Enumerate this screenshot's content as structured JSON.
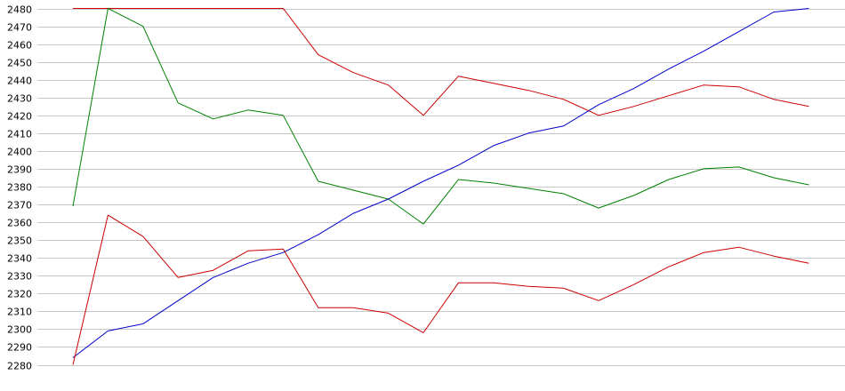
{
  "chart_data": {
    "type": "line",
    "title": "",
    "xlabel": "",
    "ylabel": "",
    "ylim": [
      2280,
      2480
    ],
    "yticks": [
      2280,
      2290,
      2300,
      2310,
      2320,
      2330,
      2340,
      2350,
      2360,
      2370,
      2380,
      2390,
      2400,
      2410,
      2420,
      2430,
      2440,
      2450,
      2460,
      2470,
      2480
    ],
    "x": [
      1,
      2,
      3,
      4,
      5,
      6,
      7,
      8,
      9,
      10,
      11,
      12,
      13,
      14,
      15,
      16,
      17,
      18,
      19,
      20,
      21,
      22
    ],
    "grid": true,
    "legend": "none",
    "series": [
      {
        "color": "#cc0000",
        "values": [
          2480,
          2480,
          2480,
          2480,
          2480,
          2480,
          2480,
          2454,
          2444,
          2437,
          2420,
          2442,
          2438,
          2434,
          2429,
          2420,
          2425,
          2431,
          2437,
          2436,
          2429,
          2425
        ]
      },
      {
        "color": "#008000",
        "values": [
          2369,
          2480,
          2470,
          2427,
          2418,
          2423,
          2420,
          2383,
          2378,
          2373,
          2359,
          2384,
          2382,
          2379,
          2376,
          2368,
          2375,
          2384,
          2390,
          2391,
          2385,
          2381
        ]
      },
      {
        "color": "#0000cc",
        "values": [
          2284,
          2299,
          2303,
          2316,
          2329,
          2337,
          2343,
          2353,
          2365,
          2373,
          2383,
          2392,
          2403,
          2410,
          2414,
          2426,
          2435,
          2446,
          2456,
          2467,
          2478,
          2480
        ]
      },
      {
        "color": "#cc0000",
        "values": [
          2280,
          2364,
          2352,
          2329,
          2333,
          2344,
          2345,
          2312,
          2312,
          2309,
          2298,
          2326,
          2326,
          2324,
          2323,
          2316,
          2325,
          2335,
          2343,
          2346,
          2341,
          2337
        ]
      }
    ]
  }
}
